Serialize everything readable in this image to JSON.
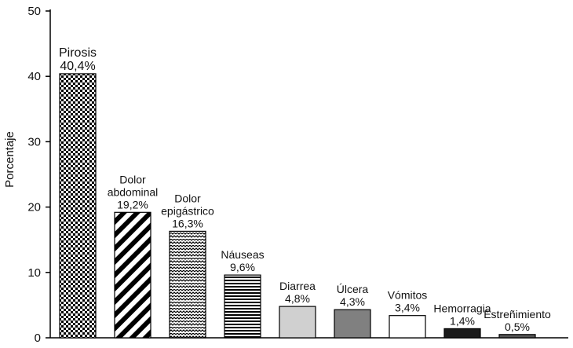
{
  "chart_data": {
    "type": "bar",
    "title": "",
    "xlabel": "",
    "ylabel": "Porcentaje",
    "ylim": [
      0,
      50
    ],
    "yticks": [
      0,
      10,
      20,
      30,
      40,
      50
    ],
    "grid": false,
    "categories": [
      [
        "Pirosis"
      ],
      [
        "Dolor",
        "abdominal"
      ],
      [
        "Dolor",
        "epigástrico"
      ],
      [
        "Náuseas"
      ],
      [
        "Diarrea"
      ],
      [
        "Úlcera"
      ],
      [
        "Vómitos"
      ],
      [
        "Hemorragia"
      ],
      [
        "Estreñimiento"
      ]
    ],
    "values": [
      40.4,
      19.2,
      16.3,
      9.6,
      4.8,
      4.3,
      3.4,
      1.4,
      0.5
    ],
    "value_labels": [
      "40,4%",
      "19,2%",
      "16,3%",
      "9,6%",
      "4,8%",
      "4,3%",
      "3,4%",
      "1,4%",
      "0,5%"
    ],
    "fills": [
      "checker-pattern",
      "diagonal-stripes",
      "wave-pattern",
      "horizontal-stripes",
      "#d0d0d0",
      "#808080",
      "#ffffff",
      "#1a1a1a",
      "#555555"
    ]
  }
}
